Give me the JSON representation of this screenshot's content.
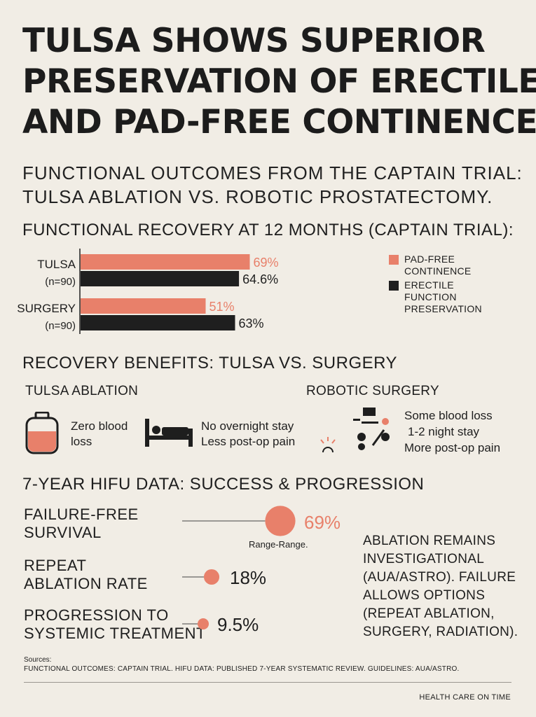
{
  "title": {
    "line1": "TULSA SHOWS SUPERIOR",
    "line2": "PRESERVATION OF ERECTILE",
    "line3": "AND PAD-FREE CONTINENCE."
  },
  "subtitle": {
    "line1": "FUNCTIONAL OUTCOMES FROM THE CAPTAIN TRIAL:",
    "line2": "TULSA ABLATION VS. ROBOTIC PROSTATECTOMY."
  },
  "colors": {
    "salmon": "#e8806a",
    "dark": "#1f1f1f",
    "salmon_text": "#e8806a"
  },
  "chart_data": {
    "type": "bar",
    "orientation": "horizontal",
    "title": "FUNCTIONAL RECOVERY AT 12 MONTHS (CAPTAIN TRIAL):",
    "categories": [
      {
        "name": "TULSA",
        "n": "(n=90)"
      },
      {
        "name": "SURGERY",
        "n": "(n=90)"
      }
    ],
    "series": [
      {
        "name": "PAD-FREE CONTINENCE",
        "values": [
          69,
          51
        ],
        "labels": [
          "69%",
          "51%"
        ]
      },
      {
        "name": "ERECTILE FUNCTION PRESERVATION",
        "values": [
          64.6,
          63
        ],
        "labels": [
          "64.6%",
          "63%"
        ]
      }
    ],
    "xlim": [
      0,
      100
    ],
    "legend_position": "right"
  },
  "benefits": {
    "heading": "RECOVERY BENEFITS: TULSA VS. SURGERY",
    "tulsa": {
      "label": "TULSA ABLATION",
      "blood_line1": "Zero blood",
      "blood_line2": "loss",
      "stay_line1": "No overnight stay",
      "stay_line2": "Less post-op pain"
    },
    "surgery": {
      "label": "ROBOTIC SURGERY",
      "line1": "Some blood loss",
      "line2": "1-2 night stay",
      "line3": "More post-op pain"
    }
  },
  "hifu": {
    "heading": "7-YEAR HIFU DATA: SUCCESS & PROGRESSION",
    "items": [
      {
        "line1": "FAILURE-FREE",
        "line2": "SURVIVAL",
        "value": 69,
        "label": "69%"
      },
      {
        "line1": "REPEAT",
        "line2": "ABLATION RATE",
        "value": 18,
        "label": "18%"
      },
      {
        "line1": "PROGRESSION TO",
        "line2": "SYSTEMIC TREATMENT",
        "value": 9.5,
        "label": "9.5%"
      }
    ],
    "range_note": "Range-Range.",
    "note": "ABLATION REMAINS INVESTIGATIONAL (AUA/ASTRO). FAILURE ALLOWS OPTIONS (REPEAT ABLATION, SURGERY, RADIATION)."
  },
  "sources": {
    "heading": "Sources:",
    "text": "FUNCTIONAL OUTCOMES: CAPTAIN TRIAL. HIFU DATA: PUBLISHED 7-YEAR SYSTEMATIC REVIEW. GUIDELINES: AUA/ASTRO."
  },
  "footer": "HEALTH CARE ON TIME"
}
